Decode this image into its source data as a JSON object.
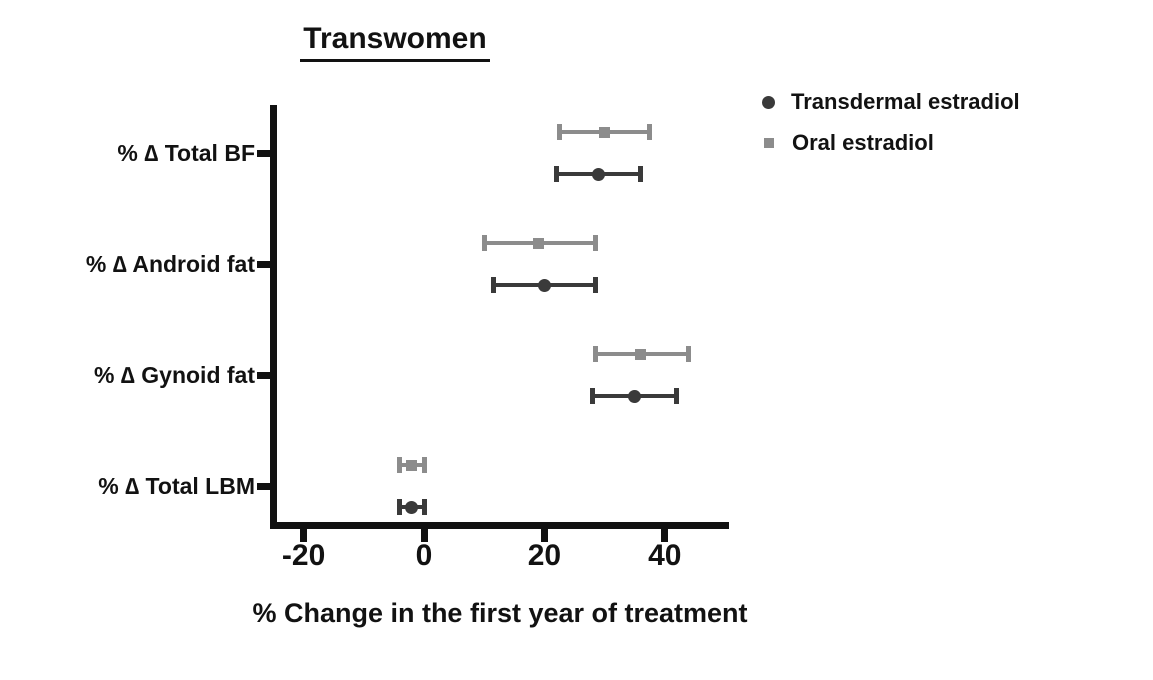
{
  "chart_data": {
    "type": "scatter",
    "subtype": "forest-dot-plot-with-error-bars",
    "title": "Transwomen",
    "xlabel": "% Change in the first year of treatment",
    "ylabel": "",
    "xlim": [
      -25,
      50
    ],
    "xticks": [
      "-20",
      "0",
      "20",
      "40"
    ],
    "xtick_values": [
      -20,
      0,
      20,
      40
    ],
    "grid": false,
    "legend_position": "top-right",
    "axis_color": "#111111",
    "text_color": "#121212",
    "categories": [
      "% ∆ Total BF",
      "% ∆ Android fat",
      "% ∆ Gynoid fat",
      "% ∆ Total LBM"
    ],
    "series": [
      {
        "name": "Transdermal estradiol",
        "marker": "circle",
        "color": "#3a3a3a",
        "values": [
          29,
          20,
          35,
          -2
        ],
        "ci_low": [
          22,
          11.5,
          28,
          -4
        ],
        "ci_high": [
          36,
          28.5,
          42,
          0
        ]
      },
      {
        "name": "Oral estradiol",
        "marker": "square",
        "color": "#8c8c8c",
        "values": [
          30,
          19,
          36,
          -2
        ],
        "ci_low": [
          22.5,
          10,
          28.5,
          -4
        ],
        "ci_high": [
          37.5,
          28.5,
          44,
          0
        ]
      }
    ]
  }
}
